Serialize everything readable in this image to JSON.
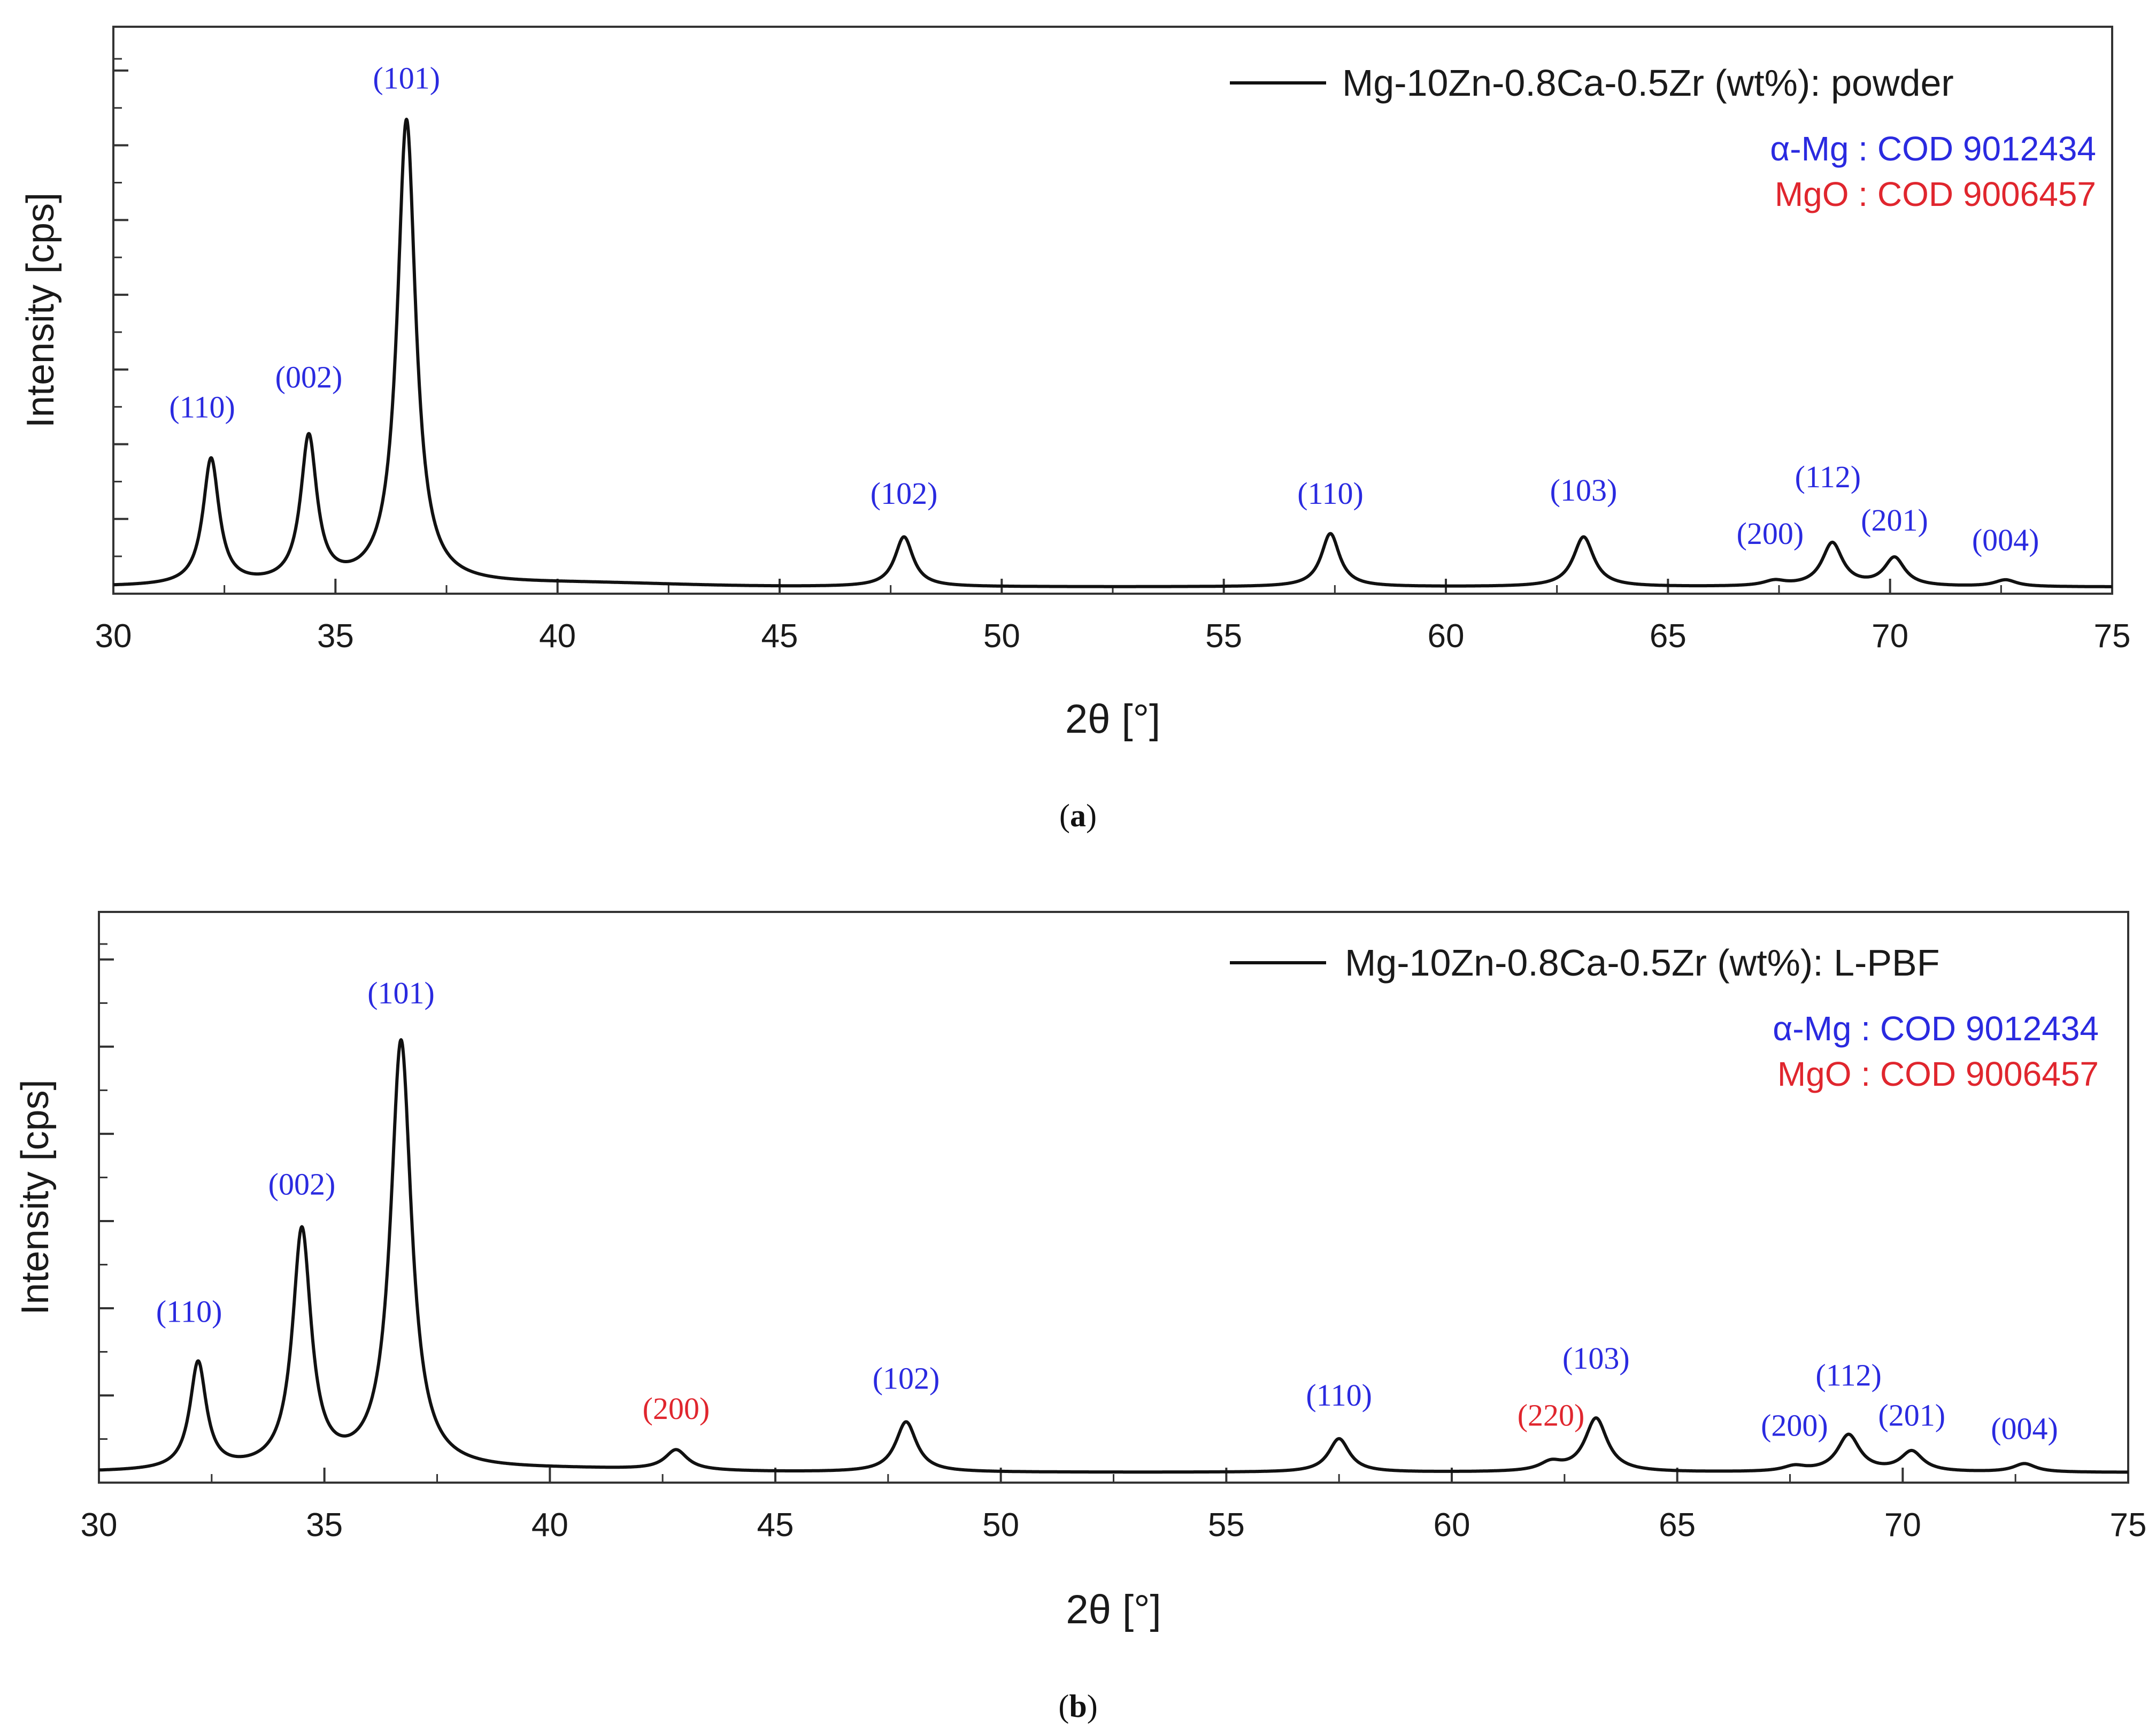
{
  "colors": {
    "alpha_mg": "#2a2ae0",
    "mgo": "#e0262e",
    "line": "#111111",
    "frame": "#333333"
  },
  "chart_data": [
    {
      "type": "line",
      "panel_label": "a",
      "xlabel": "2θ [°]",
      "ylabel": "Intensity [cps]",
      "xlim": [
        30,
        75
      ],
      "ylim": [
        0,
        140
      ],
      "x_ticks": [
        30,
        35,
        40,
        45,
        50,
        55,
        60,
        65,
        70,
        75
      ],
      "y_ticks_unlabeled": 7,
      "legend": {
        "position": "top-right",
        "entry": "Mg-10Zn-0.8Ca-0.5Zr (wt%): powder"
      },
      "references": [
        {
          "text": "α-Mg : COD 9012434",
          "phase": "alpha_mg"
        },
        {
          "text": "MgO : COD 9006457",
          "phase": "mgo"
        }
      ],
      "baseline": 2,
      "background_bumps": [
        {
          "x": 40.5,
          "height": 1.0,
          "width": 3.0
        }
      ],
      "peaks": [
        {
          "x": 32.2,
          "height": 38,
          "width": 0.22,
          "label": "(110)",
          "phase": "alpha_mg",
          "label_x": 32.0,
          "label_y": 53
        },
        {
          "x": 34.4,
          "height": 44,
          "width": 0.22,
          "label": "(002)",
          "phase": "alpha_mg",
          "label_x": 34.4,
          "label_y": 62
        },
        {
          "x": 36.6,
          "height": 140,
          "width": 0.25,
          "label": "(101)",
          "phase": "alpha_mg",
          "label_x": 36.6,
          "label_y": 152
        },
        {
          "x": 47.8,
          "height": 15,
          "width": 0.25,
          "label": "(102)",
          "phase": "alpha_mg",
          "label_x": 47.8,
          "label_y": 27
        },
        {
          "x": 57.4,
          "height": 16,
          "width": 0.25,
          "label": "(110)",
          "phase": "alpha_mg",
          "label_x": 57.4,
          "label_y": 27
        },
        {
          "x": 63.1,
          "height": 15,
          "width": 0.28,
          "label": "(103)",
          "phase": "alpha_mg",
          "label_x": 63.1,
          "label_y": 28
        },
        {
          "x": 67.4,
          "height": 1.5,
          "width": 0.3,
          "label": "(200)",
          "phase": "alpha_mg",
          "label_x": 67.3,
          "label_y": 15
        },
        {
          "x": 68.7,
          "height": 13,
          "width": 0.28,
          "label": "(112)",
          "phase": "alpha_mg",
          "label_x": 68.6,
          "label_y": 32
        },
        {
          "x": 70.1,
          "height": 8.5,
          "width": 0.28,
          "label": "(201)",
          "phase": "alpha_mg",
          "label_x": 70.1,
          "label_y": 19
        },
        {
          "x": 72.6,
          "height": 2,
          "width": 0.3,
          "label": "(004)",
          "phase": "alpha_mg",
          "label_x": 72.6,
          "label_y": 13
        }
      ]
    },
    {
      "type": "line",
      "panel_label": "b",
      "xlabel": "2θ [°]",
      "ylabel": "Intensity [cps]",
      "xlim": [
        30,
        75
      ],
      "ylim": [
        0,
        140
      ],
      "x_ticks": [
        30,
        35,
        40,
        45,
        50,
        55,
        60,
        65,
        70,
        75
      ],
      "y_ticks_unlabeled": 6,
      "legend": {
        "position": "top-right",
        "entry": "Mg-10Zn-0.8Ca-0.5Zr (wt%): L-PBF"
      },
      "references": [
        {
          "text": "α-Mg : COD 9012434",
          "phase": "alpha_mg"
        },
        {
          "text": "MgO : COD 9006457",
          "phase": "mgo"
        }
      ],
      "baseline": 3,
      "background_bumps": [
        {
          "x": 40.5,
          "height": 0.8,
          "width": 3.0
        }
      ],
      "peaks": [
        {
          "x": 32.2,
          "height": 32,
          "width": 0.22,
          "label": "(110)",
          "phase": "alpha_mg",
          "label_x": 32.0,
          "label_y": 48
        },
        {
          "x": 34.5,
          "height": 71,
          "width": 0.25,
          "label": "(002)",
          "phase": "alpha_mg",
          "label_x": 34.5,
          "label_y": 86
        },
        {
          "x": 36.7,
          "height": 128,
          "width": 0.28,
          "label": "(101)",
          "phase": "alpha_mg",
          "label_x": 36.7,
          "label_y": 143
        },
        {
          "x": 42.8,
          "height": 6,
          "width": 0.3,
          "label": "(200)",
          "phase": "mgo",
          "label_x": 42.8,
          "label_y": 19
        },
        {
          "x": 47.9,
          "height": 15,
          "width": 0.28,
          "label": "(102)",
          "phase": "alpha_mg",
          "label_x": 47.9,
          "label_y": 28
        },
        {
          "x": 57.5,
          "height": 10,
          "width": 0.28,
          "label": "(110)",
          "phase": "alpha_mg",
          "label_x": 57.5,
          "label_y": 23
        },
        {
          "x": 62.2,
          "height": 2.5,
          "width": 0.3,
          "label": "(220)",
          "phase": "mgo",
          "label_x": 62.2,
          "label_y": 17
        },
        {
          "x": 63.2,
          "height": 16,
          "width": 0.3,
          "label": "(103)",
          "phase": "alpha_mg",
          "label_x": 63.2,
          "label_y": 34
        },
        {
          "x": 67.6,
          "height": 1.5,
          "width": 0.3,
          "label": "(200)",
          "phase": "alpha_mg",
          "label_x": 67.6,
          "label_y": 14
        },
        {
          "x": 68.8,
          "height": 11,
          "width": 0.3,
          "label": "(112)",
          "phase": "alpha_mg",
          "label_x": 68.8,
          "label_y": 29
        },
        {
          "x": 70.2,
          "height": 6,
          "width": 0.3,
          "label": "(201)",
          "phase": "alpha_mg",
          "label_x": 70.2,
          "label_y": 17
        },
        {
          "x": 72.7,
          "height": 2.5,
          "width": 0.3,
          "label": "(004)",
          "phase": "alpha_mg",
          "label_x": 72.7,
          "label_y": 13
        }
      ]
    }
  ]
}
